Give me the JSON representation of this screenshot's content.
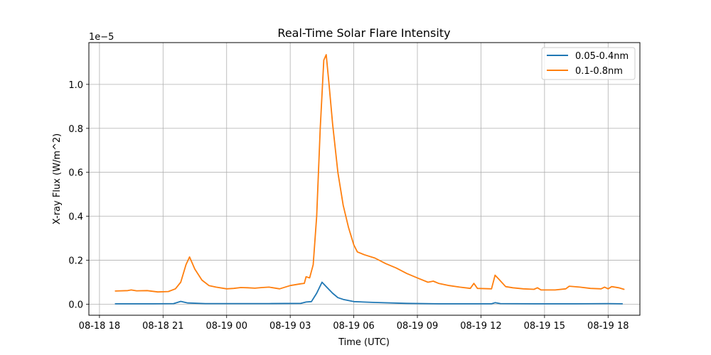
{
  "chart_data": {
    "type": "line",
    "title": "Real-Time Solar Flare Intensity",
    "xlabel": "Time (UTC)",
    "ylabel": "X-ray Flux (W/m^2)",
    "y_offset_label": "1e−5",
    "y_scale_factor": 1e-05,
    "xlim": [
      "2024-08-18T17:30",
      "2024-08-19T19:30"
    ],
    "ylim": [
      -0.05,
      1.19
    ],
    "x_ticks": [
      {
        "value": "2024-08-18T18:00",
        "label": "08-18 18"
      },
      {
        "value": "2024-08-18T21:00",
        "label": "08-18 21"
      },
      {
        "value": "2024-08-19T00:00",
        "label": "08-19 00"
      },
      {
        "value": "2024-08-19T03:00",
        "label": "08-19 03"
      },
      {
        "value": "2024-08-19T06:00",
        "label": "08-19 06"
      },
      {
        "value": "2024-08-19T09:00",
        "label": "08-19 09"
      },
      {
        "value": "2024-08-19T12:00",
        "label": "08-19 12"
      },
      {
        "value": "2024-08-19T15:00",
        "label": "08-19 15"
      },
      {
        "value": "2024-08-19T18:00",
        "label": "08-19 18"
      }
    ],
    "y_ticks": [
      {
        "value": 0.0,
        "label": "0.0"
      },
      {
        "value": 0.2,
        "label": "0.2"
      },
      {
        "value": 0.4,
        "label": "0.4"
      },
      {
        "value": 0.6,
        "label": "0.6"
      },
      {
        "value": 0.8,
        "label": "0.8"
      },
      {
        "value": 1.0,
        "label": "1.0"
      }
    ],
    "grid": true,
    "legend_position": "top-right",
    "series": [
      {
        "name": "0.05-0.4nm",
        "color": "#1f77b4",
        "points": [
          [
            "2024-08-18T18:45",
            0.002
          ],
          [
            "2024-08-18T20:30",
            0.002
          ],
          [
            "2024-08-18T21:30",
            0.003
          ],
          [
            "2024-08-18T21:50",
            0.013
          ],
          [
            "2024-08-18T22:10",
            0.006
          ],
          [
            "2024-08-18T23:00",
            0.003
          ],
          [
            "2024-08-19T00:00",
            0.003
          ],
          [
            "2024-08-19T02:00",
            0.003
          ],
          [
            "2024-08-19T03:30",
            0.004
          ],
          [
            "2024-08-19T03:45",
            0.01
          ],
          [
            "2024-08-19T04:00",
            0.012
          ],
          [
            "2024-08-19T04:15",
            0.05
          ],
          [
            "2024-08-19T04:30",
            0.1
          ],
          [
            "2024-08-19T04:45",
            0.075
          ],
          [
            "2024-08-19T05:00",
            0.05
          ],
          [
            "2024-08-19T05:15",
            0.03
          ],
          [
            "2024-08-19T05:30",
            0.022
          ],
          [
            "2024-08-19T06:00",
            0.012
          ],
          [
            "2024-08-19T07:00",
            0.008
          ],
          [
            "2024-08-19T08:30",
            0.004
          ],
          [
            "2024-08-19T10:00",
            0.002
          ],
          [
            "2024-08-19T11:30",
            0.002
          ],
          [
            "2024-08-19T12:30",
            0.002
          ],
          [
            "2024-08-19T12:40",
            0.007
          ],
          [
            "2024-08-19T12:55",
            0.003
          ],
          [
            "2024-08-19T14:30",
            0.002
          ],
          [
            "2024-08-19T16:30",
            0.002
          ],
          [
            "2024-08-19T18:00",
            0.003
          ],
          [
            "2024-08-19T18:40",
            0.002
          ]
        ]
      },
      {
        "name": "0.1-0.8nm",
        "color": "#ff7f0e",
        "points": [
          [
            "2024-08-18T18:45",
            0.06
          ],
          [
            "2024-08-18T19:20",
            0.062
          ],
          [
            "2024-08-18T19:30",
            0.065
          ],
          [
            "2024-08-18T19:45",
            0.061
          ],
          [
            "2024-08-18T20:15",
            0.062
          ],
          [
            "2024-08-18T20:45",
            0.056
          ],
          [
            "2024-08-18T21:15",
            0.058
          ],
          [
            "2024-08-18T21:35",
            0.07
          ],
          [
            "2024-08-18T21:50",
            0.1
          ],
          [
            "2024-08-18T22:05",
            0.18
          ],
          [
            "2024-08-18T22:15",
            0.215
          ],
          [
            "2024-08-18T22:30",
            0.16
          ],
          [
            "2024-08-18T22:50",
            0.11
          ],
          [
            "2024-08-18T23:10",
            0.085
          ],
          [
            "2024-08-18T23:30",
            0.078
          ],
          [
            "2024-08-19T00:00",
            0.07
          ],
          [
            "2024-08-19T00:20",
            0.072
          ],
          [
            "2024-08-19T00:40",
            0.076
          ],
          [
            "2024-08-19T01:00",
            0.075
          ],
          [
            "2024-08-19T01:20",
            0.073
          ],
          [
            "2024-08-19T01:40",
            0.076
          ],
          [
            "2024-08-19T02:00",
            0.078
          ],
          [
            "2024-08-19T02:30",
            0.07
          ],
          [
            "2024-08-19T03:00",
            0.085
          ],
          [
            "2024-08-19T03:30",
            0.093
          ],
          [
            "2024-08-19T03:40",
            0.095
          ],
          [
            "2024-08-19T03:45",
            0.125
          ],
          [
            "2024-08-19T03:55",
            0.12
          ],
          [
            "2024-08-19T04:05",
            0.18
          ],
          [
            "2024-08-19T04:15",
            0.4
          ],
          [
            "2024-08-19T04:25",
            0.8
          ],
          [
            "2024-08-19T04:35",
            1.11
          ],
          [
            "2024-08-19T04:42",
            1.135
          ],
          [
            "2024-08-19T04:50",
            1.0
          ],
          [
            "2024-08-19T05:00",
            0.82
          ],
          [
            "2024-08-19T05:15",
            0.6
          ],
          [
            "2024-08-19T05:30",
            0.45
          ],
          [
            "2024-08-19T05:45",
            0.35
          ],
          [
            "2024-08-19T06:00",
            0.27
          ],
          [
            "2024-08-19T06:10",
            0.238
          ],
          [
            "2024-08-19T06:30",
            0.225
          ],
          [
            "2024-08-19T07:00",
            0.21
          ],
          [
            "2024-08-19T07:30",
            0.185
          ],
          [
            "2024-08-19T08:00",
            0.165
          ],
          [
            "2024-08-19T08:30",
            0.14
          ],
          [
            "2024-08-19T09:00",
            0.12
          ],
          [
            "2024-08-19T09:30",
            0.1
          ],
          [
            "2024-08-19T09:45",
            0.105
          ],
          [
            "2024-08-19T10:00",
            0.095
          ],
          [
            "2024-08-19T10:30",
            0.085
          ],
          [
            "2024-08-19T11:00",
            0.078
          ],
          [
            "2024-08-19T11:30",
            0.072
          ],
          [
            "2024-08-19T11:40",
            0.095
          ],
          [
            "2024-08-19T11:50",
            0.072
          ],
          [
            "2024-08-19T12:30",
            0.07
          ],
          [
            "2024-08-19T12:40",
            0.132
          ],
          [
            "2024-08-19T12:50",
            0.115
          ],
          [
            "2024-08-19T13:10",
            0.08
          ],
          [
            "2024-08-19T13:30",
            0.075
          ],
          [
            "2024-08-19T14:00",
            0.07
          ],
          [
            "2024-08-19T14:30",
            0.068
          ],
          [
            "2024-08-19T14:40",
            0.075
          ],
          [
            "2024-08-19T14:50",
            0.065
          ],
          [
            "2024-08-19T15:30",
            0.065
          ],
          [
            "2024-08-19T16:00",
            0.07
          ],
          [
            "2024-08-19T16:10",
            0.082
          ],
          [
            "2024-08-19T16:40",
            0.078
          ],
          [
            "2024-08-19T17:10",
            0.072
          ],
          [
            "2024-08-19T17:40",
            0.07
          ],
          [
            "2024-08-19T17:50",
            0.078
          ],
          [
            "2024-08-19T18:00",
            0.07
          ],
          [
            "2024-08-19T18:10",
            0.08
          ],
          [
            "2024-08-19T18:30",
            0.075
          ],
          [
            "2024-08-19T18:45",
            0.068
          ]
        ]
      }
    ]
  }
}
